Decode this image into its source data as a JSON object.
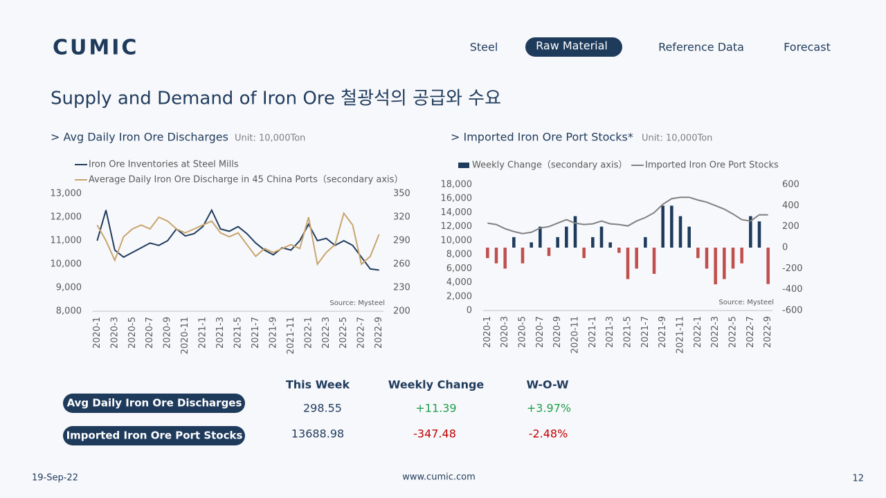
{
  "logo": "CUMIC",
  "nav": [
    "Steel",
    "Raw Material",
    "Reference Data",
    "Forecast"
  ],
  "title": "Supply and Demand of Iron Ore 철광석의 공급와 수요",
  "chart_data": [
    {
      "type": "line",
      "title": "> Avg Daily Iron Ore Discharges",
      "unit": "Unit: 10,000Ton",
      "annotation": "Source: Mysteel",
      "categories": [
        "2020-1",
        null,
        "2020-3",
        null,
        "2020-5",
        null,
        "2020-7",
        null,
        "2020-9",
        null,
        "2020-11",
        null,
        "2021-1",
        null,
        "2021-3",
        null,
        "2021-5",
        null,
        "2021-7",
        null,
        "2021-9",
        null,
        "2021-11",
        null,
        "2022-1",
        null,
        "2022-3",
        null,
        "2022-5",
        null,
        "2022-7",
        null,
        "2022-9"
      ],
      "series": [
        {
          "name": "Iron Ore Inventories at Steel Mills",
          "color": "#1f3b5c",
          "values": [
            11000,
            12300,
            10600,
            10300,
            10500,
            10700,
            10900,
            10800,
            11000,
            11500,
            11200,
            11300,
            11600,
            12300,
            11500,
            11400,
            11600,
            11300,
            10900,
            10600,
            10400,
            10700,
            10600,
            11000,
            11700,
            11000,
            11100,
            10800,
            11000,
            10800,
            10300,
            9800,
            9750
          ]
        },
        {
          "name": "Average Daily Iron Ore Discharge in 45 China Ports（secondary axis）",
          "color": "#c8a46e",
          "axis": "y2",
          "values": [
            310,
            290,
            265,
            295,
            305,
            310,
            305,
            320,
            315,
            305,
            300,
            305,
            310,
            315,
            300,
            295,
            300,
            285,
            270,
            280,
            275,
            280,
            285,
            280,
            320,
            260,
            275,
            285,
            325,
            310,
            260,
            270,
            298
          ]
        }
      ],
      "ylim": [
        8000,
        13000
      ],
      "yticks": [
        {
          "value": 8000,
          "label": "8,000"
        },
        {
          "value": 9000,
          "label": "9,000"
        },
        {
          "value": 10000,
          "label": "10,000"
        },
        {
          "value": 11000,
          "label": "11,000"
        },
        {
          "value": 12000,
          "label": "12,000"
        },
        {
          "value": 13000,
          "label": "13,000"
        }
      ],
      "y2lim": [
        200,
        350
      ],
      "y2ticks": [
        200,
        230,
        260,
        290,
        320,
        350
      ]
    },
    {
      "type": "bar-line",
      "title": "> Imported Iron Ore Port Stocks*",
      "unit": "Unit: 10,000Ton",
      "annotation": "Source: Mysteel",
      "categories": [
        "2020-1",
        null,
        "2020-3",
        null,
        "2020-5",
        null,
        "2020-7",
        null,
        "2020-9",
        null,
        "2020-11",
        null,
        "2021-1",
        null,
        "2021-3",
        null,
        "2021-5",
        null,
        "2021-7",
        null,
        "2021-9",
        null,
        "2021-11",
        null,
        "2022-1",
        null,
        "2022-3",
        null,
        "2022-5",
        null,
        "2022-7",
        null,
        "2022-9"
      ],
      "series": [
        {
          "name": "Weekly Change（secondary axis）",
          "color": "#1f3b5c",
          "negative_color": "#c0504d",
          "axis": "y2",
          "values": [
            -100,
            -150,
            -200,
            100,
            -150,
            50,
            200,
            -80,
            100,
            200,
            300,
            -100,
            100,
            200,
            50,
            -50,
            -300,
            -200,
            100,
            -250,
            400,
            400,
            300,
            200,
            -100,
            -200,
            -350,
            -300,
            -200,
            -150,
            300,
            250,
            -347.48
          ]
        },
        {
          "name": "Imported Iron Ore Port Stocks",
          "color": "#808080",
          "values": [
            12500,
            12300,
            11700,
            11300,
            11000,
            11200,
            11800,
            12000,
            12500,
            13000,
            12500,
            12300,
            12400,
            12800,
            12400,
            12300,
            12100,
            12800,
            13300,
            14000,
            15200,
            16000,
            16200,
            16200,
            15800,
            15500,
            15000,
            14500,
            13800,
            13000,
            12800,
            13700,
            13688.98
          ]
        }
      ],
      "ylim": [
        0,
        18000
      ],
      "yticks": [
        0,
        {
          "value": 2000,
          "label": "2,000"
        },
        {
          "value": 4000,
          "label": "4,000"
        },
        {
          "value": 6000,
          "label": "6,000"
        },
        {
          "value": 8000,
          "label": "8,000"
        },
        {
          "value": 10000,
          "label": "10,000"
        },
        {
          "value": 12000,
          "label": "12,000"
        },
        {
          "value": 14000,
          "label": "14,000"
        },
        {
          "value": 16000,
          "label": "16,000"
        },
        {
          "value": 18000,
          "label": "18,000"
        }
      ],
      "y2lim": [
        -600,
        600
      ],
      "y2ticks": [
        -600,
        -400,
        -200,
        0,
        200,
        400,
        600
      ]
    }
  ],
  "table": {
    "headers": [
      "This Week",
      "Weekly Change",
      "W-O-W"
    ],
    "rows": [
      [
        "Avg Daily Iron Ore Discharges",
        "298.55",
        "+11.39",
        "+3.97%"
      ],
      [
        "Imported Iron Ore Port Stocks",
        "13688.98",
        "-347.48",
        "-2.48%"
      ]
    ]
  },
  "footer": {
    "date": "19-Sep-22",
    "url": "www.cumic.com",
    "page": "12"
  }
}
